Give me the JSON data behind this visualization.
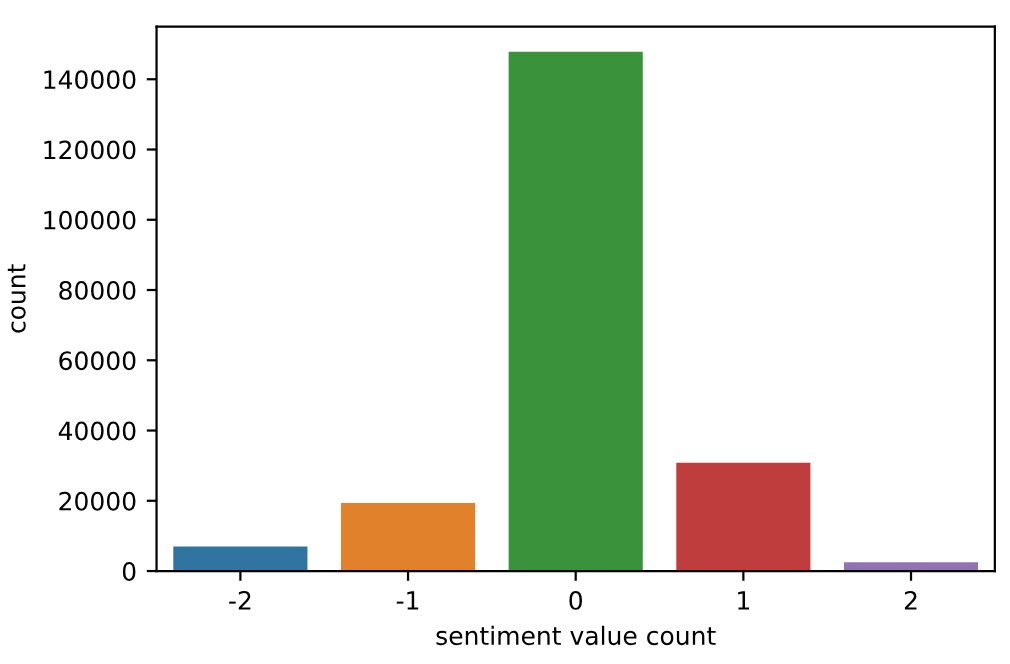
{
  "chart_data": {
    "type": "bar",
    "xlabel": "sentiment value count",
    "ylabel": "count",
    "categories": [
      "-2",
      "-1",
      "0",
      "1",
      "2"
    ],
    "values": [
      7000,
      19400,
      147800,
      30800,
      2500
    ],
    "colors": [
      "#3274a1",
      "#e1812c",
      "#3a923a",
      "#c03d3e",
      "#9372b2"
    ],
    "ylim": [
      0,
      155000
    ],
    "yticks": [
      0,
      20000,
      40000,
      60000,
      80000,
      100000,
      120000,
      140000
    ],
    "grid": false,
    "legend": false
  }
}
